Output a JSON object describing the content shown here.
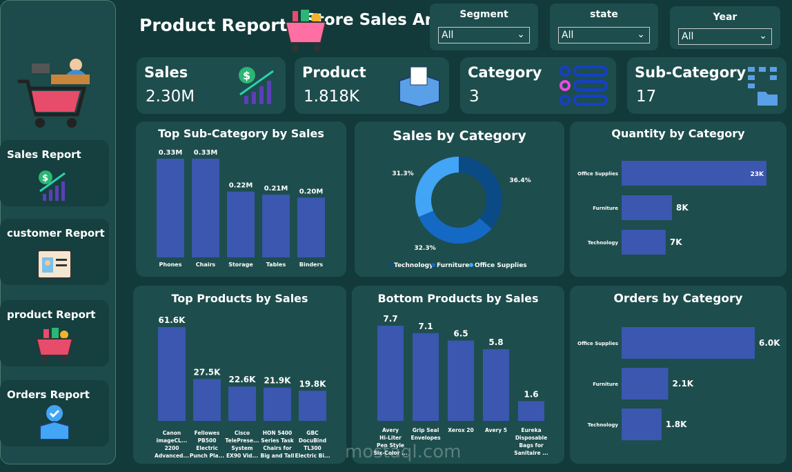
{
  "sidebar": {
    "title": "Store Sales Analysis",
    "items": [
      {
        "label": "Sales Report"
      },
      {
        "label": "customer Report"
      },
      {
        "label": "product Report"
      },
      {
        "label": "Orders Report"
      }
    ]
  },
  "header": {
    "title": "Product Report"
  },
  "slicers": [
    {
      "label": "Segment",
      "value": "All"
    },
    {
      "label": "state",
      "value": "All"
    },
    {
      "label": "Year",
      "value": "All"
    }
  ],
  "kpis": [
    {
      "label": "Sales",
      "value": "2.30M"
    },
    {
      "label": "Product",
      "value": "1.818K"
    },
    {
      "label": "Category",
      "value": "3"
    },
    {
      "label": "Sub-Category",
      "value": "17"
    }
  ],
  "colors": {
    "background": "#123a3a",
    "panel": "#1e4d4d",
    "bar": "#3b57b0",
    "technology": "#0a4a85",
    "furniture": "#1469c4",
    "office_supplies": "#42a5f5"
  },
  "watermark": "mostaql.com",
  "chart_data": [
    {
      "type": "bar",
      "title": "Top Sub-Category by Sales",
      "categories": [
        "Phones",
        "Chairs",
        "Storage",
        "Tables",
        "Binders"
      ],
      "values": [
        0.33,
        0.33,
        0.22,
        0.21,
        0.2
      ],
      "labels": [
        "0.33M",
        "0.33M",
        "0.22M",
        "0.21M",
        "0.20M"
      ]
    },
    {
      "type": "pie",
      "title": "Sales by Category",
      "categories": [
        "Technology",
        "Furniture",
        "Office Supplies"
      ],
      "values": [
        36.4,
        32.3,
        31.3
      ],
      "labels": [
        "36.4%",
        "32.3%",
        "31.3%"
      ],
      "legend": "bottom",
      "donut": true
    },
    {
      "type": "bar",
      "orientation": "horizontal",
      "title": "Quantity by Category",
      "categories": [
        "Office Supplies",
        "Furniture",
        "Technology"
      ],
      "values": [
        23,
        8,
        7
      ],
      "labels": [
        "23K",
        "8K",
        "7K"
      ]
    },
    {
      "type": "bar",
      "title": "Top Products by Sales",
      "categories": [
        [
          "Canon",
          "imageCL...",
          "2200",
          "Advanced..."
        ],
        [
          "Fellowes",
          "PB500",
          "Electric",
          "Punch Pla..."
        ],
        [
          "Cisco",
          "TelePrese...",
          "System",
          "EX90 Vid..."
        ],
        [
          "HON 5400",
          "Series Task",
          "Chairs for",
          "Big and Tall"
        ],
        [
          "GBC",
          "DocuBind",
          "TL300",
          "Electric Bi..."
        ]
      ],
      "values": [
        61.6,
        27.5,
        22.6,
        21.9,
        19.8
      ],
      "labels": [
        "61.6K",
        "27.5K",
        "22.6K",
        "21.9K",
        "19.8K"
      ]
    },
    {
      "type": "bar",
      "title": "Bottom Products by Sales",
      "categories": [
        [
          "Avery",
          "Hi-Liter",
          "Pen Style",
          "Six-Color ..."
        ],
        [
          "Grip Seal",
          "Envelopes"
        ],
        [
          "Xerox 20"
        ],
        [
          "Avery 5"
        ],
        [
          "Eureka",
          "Disposable",
          "Bags for",
          "Sanitaire ..."
        ]
      ],
      "values": [
        7.7,
        7.1,
        6.5,
        5.8,
        1.6
      ],
      "labels": [
        "7.7",
        "7.1",
        "6.5",
        "5.8",
        "1.6"
      ]
    },
    {
      "type": "bar",
      "orientation": "horizontal",
      "title": "Orders by Category",
      "categories": [
        "Office Supplies",
        "Furniture",
        "Technology"
      ],
      "values": [
        6.0,
        2.1,
        1.8
      ],
      "labels": [
        "6.0K",
        "2.1K",
        "1.8K"
      ]
    }
  ]
}
